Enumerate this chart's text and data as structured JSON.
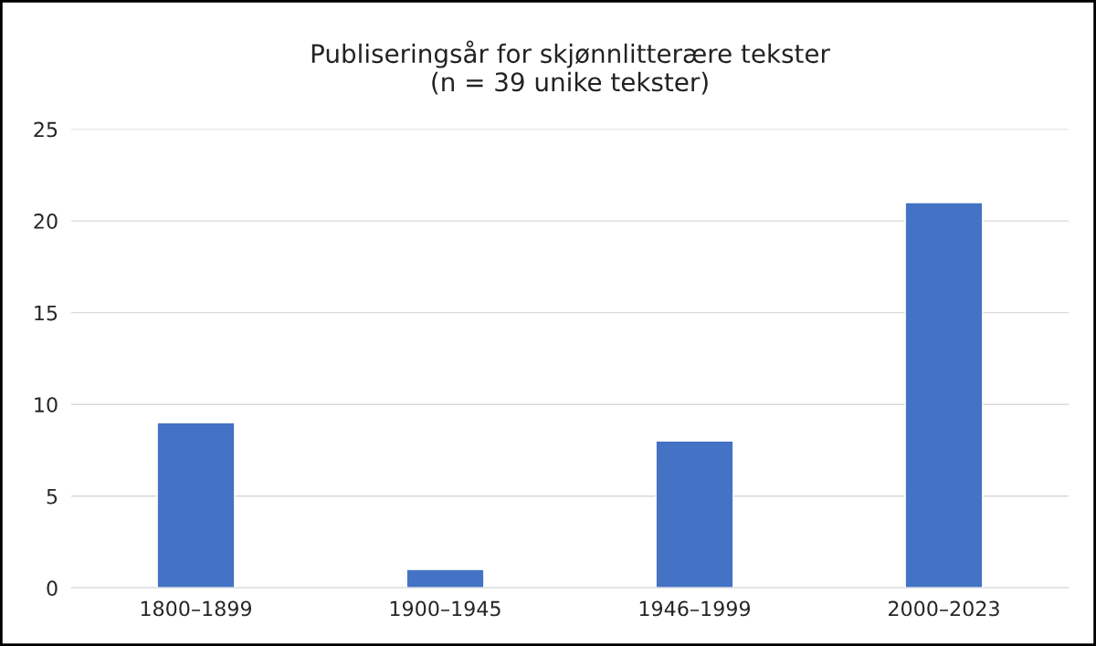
{
  "chart_data": {
    "type": "bar",
    "title": "Publiseringsår for skjønnlitterære tekster\n(n = 39 unike tekster)",
    "categories": [
      "1800–1899",
      "1900–1945",
      "1946–1999",
      "2000–2023"
    ],
    "values": [
      9,
      1,
      8,
      21
    ],
    "color": "#4472c4",
    "ylim": [
      0,
      25
    ],
    "yticks": [
      0,
      5,
      10,
      15,
      20,
      25
    ],
    "grid": "y"
  }
}
